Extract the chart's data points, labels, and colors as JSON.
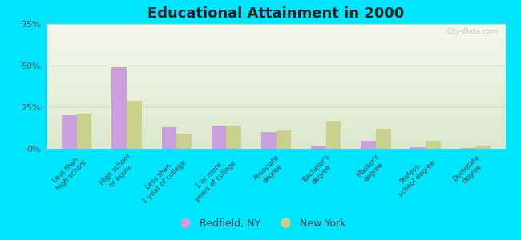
{
  "title": "Educational Attainment in 2000",
  "categories": [
    "Less than\nhigh school",
    "High school\nor equiv.",
    "Less than\n1 year of college",
    "1 or more\nyears of college",
    "Associate\ndegree",
    "Bachelor's\ndegree",
    "Master's\ndegree",
    "Profess.\nschool degree",
    "Doctorate\ndegree"
  ],
  "redfield_values": [
    20,
    49,
    13,
    14,
    10,
    2,
    5,
    1,
    0.5
  ],
  "newyork_values": [
    21,
    29,
    9,
    14,
    11,
    17,
    12,
    5,
    2
  ],
  "redfield_color": "#c9a0dc",
  "newyork_color": "#c8d08c",
  "ylim": [
    0,
    75
  ],
  "yticks": [
    0,
    25,
    50,
    75
  ],
  "ytick_labels": [
    "0%",
    "25%",
    "50%",
    "75%"
  ],
  "background_outer": "#00e5ff",
  "bg_top": "#f5f8ee",
  "bg_bottom": "#dde8cc",
  "grid_color": "#d8dfc0",
  "legend_redfield": "Redfield, NY",
  "legend_newyork": "New York",
  "title_fontsize": 13,
  "watermark": "City-Data.com",
  "bar_width": 0.3
}
